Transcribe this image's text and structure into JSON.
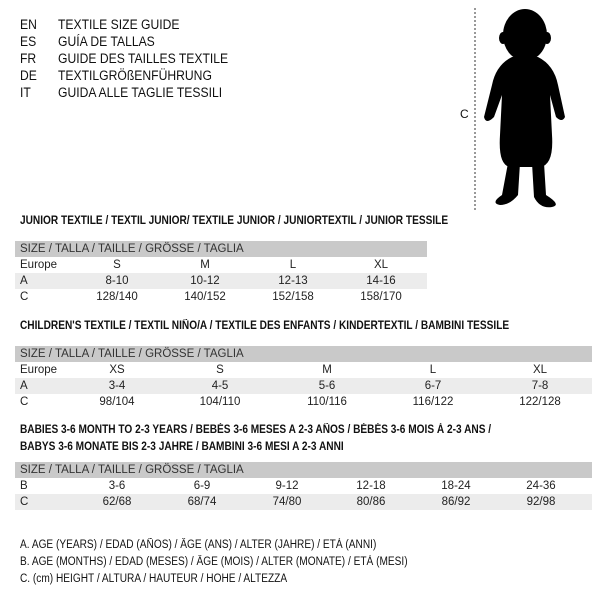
{
  "languages": [
    {
      "code": "EN",
      "name": "TEXTILE SIZE GUIDE"
    },
    {
      "code": "ES",
      "name": "GUÍA DE TALLAS"
    },
    {
      "code": "FR",
      "name": "GUIDE DES TAILLES TEXTILE"
    },
    {
      "code": "DE",
      "name": "TEXTILGRÖßENFÜHRUNG"
    },
    {
      "code": "IT",
      "name": "GUIDA ALLE TAGLIE TESSILI"
    }
  ],
  "figure": {
    "measure_label": "C",
    "icon": "baby-silhouette-icon"
  },
  "header_label": "SIZE / TALLA / TAILLE / GRÖSSE / TAGLIA",
  "junior": {
    "title": "JUNIOR TEXTILE / TEXTIL JUNIOR/ TEXTILE JUNIOR / JUNIORTEXTIL / JUNIOR TESSILE",
    "rows": [
      {
        "label": "Europe",
        "cells": [
          "S",
          "M",
          "L",
          "XL"
        ]
      },
      {
        "label": "A",
        "cells": [
          "8-10",
          "10-12",
          "12-13",
          "14-16"
        ]
      },
      {
        "label": "C",
        "cells": [
          "128/140",
          "140/152",
          "152/158",
          "158/170"
        ]
      }
    ]
  },
  "children": {
    "title": "CHILDREN'S TEXTILE / TEXTIL NIÑO/A / TEXTILE DES ENFANTS / KINDERTEXTIL / BAMBINI TESSILE",
    "rows": [
      {
        "label": "Europe",
        "cells": [
          "XS",
          "S",
          "M",
          "L",
          "XL"
        ]
      },
      {
        "label": "A",
        "cells": [
          "3-4",
          "4-5",
          "5-6",
          "6-7",
          "7-8"
        ]
      },
      {
        "label": "C",
        "cells": [
          "98/104",
          "104/110",
          "110/116",
          "116/122",
          "122/128"
        ]
      }
    ]
  },
  "babies": {
    "title_1": "BABIES 3-6 MONTH TO 2-3 YEARS / BEBÉS 3-6 MESES A 2-3 AÑOS / BÉBÉS 3-6 MOIS À 2-3 ANS /",
    "title_2": "BABYS 3-6 MONATE BIS 2-3 JAHRE / BAMBINI 3-6 MESI A 2-3 ANNI",
    "rows": [
      {
        "label": "B",
        "cells": [
          "3-6",
          "6-9",
          "9-12",
          "12-18",
          "18-24",
          "24-36"
        ]
      },
      {
        "label": "C",
        "cells": [
          "62/68",
          "68/74",
          "74/80",
          "80/86",
          "86/92",
          "92/98"
        ]
      }
    ]
  },
  "legend": [
    "A. AGE (YEARS) / EDAD (AÑOS) / ÂGE (ANS) / ALTER (JAHRE) / ETÀ (ANNI)",
    "B. AGE (MONTHS) / EDAD (MESES) / ÂGE (MOIS) / ALTER (MONATE) / ETÀ (MESI)",
    "C. (cm) HEIGHT / ALTURA / HAUTEUR / HÖHE / ALTEZZA"
  ]
}
